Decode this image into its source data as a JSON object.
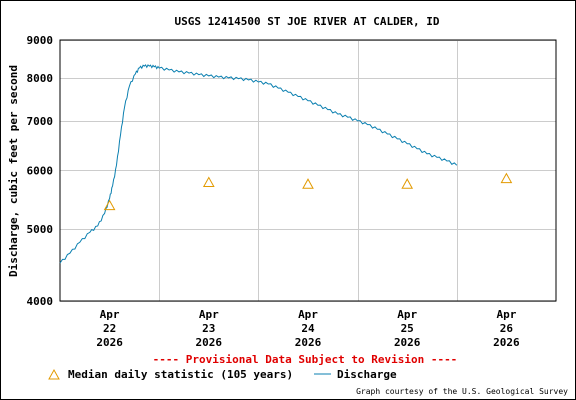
{
  "chart_data": {
    "type": "line",
    "title": "USGS 12414500 ST JOE RIVER AT CALDER, ID",
    "ylabel": "Discharge, cubic feet per second",
    "xlabel": "",
    "y_scale": "log",
    "ylim": [
      4000,
      9000
    ],
    "y_ticks": [
      4000,
      5000,
      6000,
      7000,
      8000,
      9000
    ],
    "x_ticks": [
      {
        "pos": 0.5,
        "lines": [
          "Apr",
          "22",
          "2026"
        ]
      },
      {
        "pos": 1.5,
        "lines": [
          "Apr",
          "23",
          "2026"
        ]
      },
      {
        "pos": 2.5,
        "lines": [
          "Apr",
          "24",
          "2026"
        ]
      },
      {
        "pos": 3.5,
        "lines": [
          "Apr",
          "25",
          "2026"
        ]
      },
      {
        "pos": 4.5,
        "lines": [
          "Apr",
          "26",
          "2026"
        ]
      }
    ],
    "xlim": [
      0,
      5
    ],
    "grid": true,
    "series": [
      {
        "name": "Discharge",
        "color": "#0a7fb0",
        "points": [
          [
            0.0,
            4500
          ],
          [
            0.1,
            4640
          ],
          [
            0.2,
            4800
          ],
          [
            0.3,
            4950
          ],
          [
            0.38,
            5050
          ],
          [
            0.45,
            5250
          ],
          [
            0.5,
            5500
          ],
          [
            0.53,
            5720
          ],
          [
            0.57,
            6100
          ],
          [
            0.61,
            6700
          ],
          [
            0.65,
            7300
          ],
          [
            0.7,
            7800
          ],
          [
            0.76,
            8100
          ],
          [
            0.8,
            8250
          ],
          [
            0.85,
            8300
          ],
          [
            0.9,
            8300
          ],
          [
            0.95,
            8280
          ],
          [
            1.0,
            8250
          ],
          [
            1.1,
            8200
          ],
          [
            1.2,
            8150
          ],
          [
            1.3,
            8120
          ],
          [
            1.4,
            8080
          ],
          [
            1.5,
            8050
          ],
          [
            1.6,
            8020
          ],
          [
            1.7,
            8000
          ],
          [
            1.8,
            7980
          ],
          [
            1.9,
            7950
          ],
          [
            2.0,
            7900
          ],
          [
            2.1,
            7850
          ],
          [
            2.2,
            7750
          ],
          [
            2.3,
            7650
          ],
          [
            2.4,
            7550
          ],
          [
            2.5,
            7450
          ],
          [
            2.6,
            7350
          ],
          [
            2.7,
            7250
          ],
          [
            2.8,
            7150
          ],
          [
            2.9,
            7080
          ],
          [
            3.0,
            7000
          ],
          [
            3.1,
            6920
          ],
          [
            3.2,
            6820
          ],
          [
            3.3,
            6720
          ],
          [
            3.4,
            6620
          ],
          [
            3.5,
            6520
          ],
          [
            3.6,
            6420
          ],
          [
            3.7,
            6320
          ],
          [
            3.8,
            6250
          ],
          [
            3.9,
            6180
          ],
          [
            4.0,
            6100
          ]
        ]
      },
      {
        "name": "Median daily statistic (105 years)",
        "color": "#e29a00",
        "marker": "triangle",
        "points": [
          [
            0.5,
            5380
          ],
          [
            1.5,
            5780
          ],
          [
            2.5,
            5750
          ],
          [
            3.5,
            5750
          ],
          [
            4.5,
            5850
          ]
        ]
      }
    ]
  },
  "provisional_note": "---- Provisional Data Subject to Revision ----",
  "legend": {
    "median_label": "Median daily statistic (105 years)",
    "discharge_label": "Discharge"
  },
  "credit": "Graph courtesy of the U.S. Geological Survey"
}
